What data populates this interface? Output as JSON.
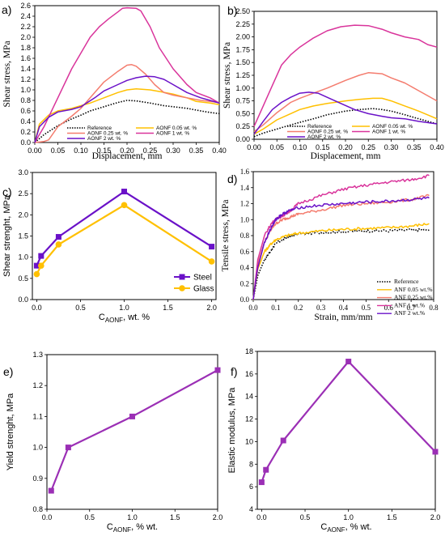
{
  "chart_data": [
    {
      "id": "a",
      "panel": "a)",
      "type": "line",
      "xlabel": "Displacement, mm",
      "ylabel": "Shear stress, MPa",
      "xlim": [
        0,
        0.4
      ],
      "ylim": [
        0,
        2.6
      ],
      "xticks": [
        "0.00",
        "0.05",
        "0.10",
        "0.15",
        "0.20",
        "0.25",
        "0.30",
        "0.35",
        "0.40"
      ],
      "yticks": [
        "0.0",
        "0.2",
        "0.4",
        "0.6",
        "0.8",
        "1.0",
        "1.2",
        "1.4",
        "1.6",
        "1.8",
        "2.0",
        "2.2",
        "2.4",
        "2.6"
      ],
      "legend": "bottom, two columns",
      "series": [
        {
          "name": "Reference",
          "color": "#000000",
          "dash": "dotted",
          "x": [
            0,
            0.02,
            0.05,
            0.08,
            0.1,
            0.12,
            0.15,
            0.18,
            0.2,
            0.22,
            0.25,
            0.28,
            0.3,
            0.33,
            0.36,
            0.38,
            0.4
          ],
          "y": [
            0,
            0.15,
            0.32,
            0.45,
            0.52,
            0.6,
            0.68,
            0.76,
            0.8,
            0.79,
            0.75,
            0.7,
            0.68,
            0.65,
            0.6,
            0.57,
            0.55
          ]
        },
        {
          "name": "AONF 0.05 wt. %",
          "color": "#FFC000",
          "dash": "solid",
          "x": [
            0,
            0.01,
            0.03,
            0.05,
            0.08,
            0.1,
            0.12,
            0.15,
            0.18,
            0.2,
            0.22,
            0.25,
            0.27,
            0.3,
            0.33,
            0.35,
            0.38,
            0.4
          ],
          "y": [
            0,
            0.35,
            0.52,
            0.6,
            0.65,
            0.7,
            0.75,
            0.85,
            0.95,
            1.0,
            1.02,
            1.0,
            0.97,
            0.92,
            0.85,
            0.78,
            0.75,
            0.72
          ]
        },
        {
          "name": "AONF 0.25 wt. %",
          "color": "#F47C6E",
          "dash": "solid",
          "x": [
            0,
            0.02,
            0.03,
            0.05,
            0.08,
            0.1,
            0.13,
            0.15,
            0.18,
            0.2,
            0.21,
            0.22,
            0.24,
            0.26,
            0.28,
            0.3,
            0.33,
            0.36,
            0.38,
            0.4
          ],
          "y": [
            0,
            0.02,
            0.05,
            0.3,
            0.5,
            0.65,
            0.95,
            1.15,
            1.35,
            1.47,
            1.48,
            1.45,
            1.3,
            1.1,
            0.95,
            0.9,
            0.85,
            0.8,
            0.78,
            0.76
          ]
        },
        {
          "name": "AONF 1 wt. %",
          "color": "#D9349B",
          "dash": "solid",
          "x": [
            0,
            0.02,
            0.05,
            0.08,
            0.1,
            0.12,
            0.14,
            0.16,
            0.18,
            0.19,
            0.2,
            0.22,
            0.23,
            0.25,
            0.27,
            0.3,
            0.33,
            0.35,
            0.38,
            0.4
          ],
          "y": [
            0,
            0.3,
            0.85,
            1.4,
            1.7,
            2.0,
            2.2,
            2.35,
            2.48,
            2.55,
            2.56,
            2.55,
            2.5,
            2.2,
            1.8,
            1.4,
            1.1,
            0.95,
            0.85,
            0.75
          ]
        },
        {
          "name": "AONF 2 wt. %",
          "color": "#6A11C8",
          "dash": "solid",
          "x": [
            0,
            0.01,
            0.03,
            0.05,
            0.08,
            0.1,
            0.13,
            0.15,
            0.18,
            0.2,
            0.22,
            0.24,
            0.26,
            0.28,
            0.3,
            0.33,
            0.36,
            0.38,
            0.4
          ],
          "y": [
            0,
            0.3,
            0.48,
            0.58,
            0.63,
            0.68,
            0.85,
            0.98,
            1.1,
            1.18,
            1.23,
            1.26,
            1.25,
            1.2,
            1.1,
            0.95,
            0.85,
            0.8,
            0.75
          ]
        }
      ]
    },
    {
      "id": "b",
      "panel": "b)",
      "type": "line",
      "xlabel": "Displacement, mm",
      "ylabel": "Shear stress, MPa",
      "xlim": [
        0,
        0.4
      ],
      "ylim": [
        0,
        2.5
      ],
      "xticks": [
        "0.00",
        "0.05",
        "0.10",
        "0.15",
        "0.20",
        "0.25",
        "0.30",
        "0.35",
        "0.40"
      ],
      "yticks": [
        "0.00",
        "0.25",
        "0.50",
        "0.75",
        "1.00",
        "1.25",
        "1.50",
        "1.75",
        "2.00",
        "2.25",
        "2.50"
      ],
      "legend": "bottom, two columns",
      "series": [
        {
          "name": "Reference",
          "color": "#000000",
          "dash": "dotted",
          "x": [
            0,
            0.02,
            0.05,
            0.08,
            0.1,
            0.13,
            0.16,
            0.2,
            0.23,
            0.26,
            0.28,
            0.3,
            0.33,
            0.36,
            0.4
          ],
          "y": [
            0.05,
            0.12,
            0.2,
            0.28,
            0.33,
            0.4,
            0.48,
            0.55,
            0.58,
            0.6,
            0.58,
            0.55,
            0.48,
            0.4,
            0.3
          ]
        },
        {
          "name": "AONF 0.05 wt. %",
          "color": "#FFC000",
          "dash": "solid",
          "x": [
            0,
            0.02,
            0.05,
            0.08,
            0.1,
            0.13,
            0.16,
            0.2,
            0.23,
            0.26,
            0.28,
            0.3,
            0.33,
            0.36,
            0.4
          ],
          "y": [
            0.1,
            0.2,
            0.38,
            0.5,
            0.58,
            0.65,
            0.7,
            0.75,
            0.78,
            0.8,
            0.8,
            0.75,
            0.65,
            0.55,
            0.4
          ]
        },
        {
          "name": "AONF 0.25 wt. %",
          "color": "#F47C6E",
          "dash": "solid",
          "x": [
            0,
            0.02,
            0.05,
            0.08,
            0.1,
            0.13,
            0.16,
            0.2,
            0.23,
            0.25,
            0.28,
            0.3,
            0.33,
            0.36,
            0.4
          ],
          "y": [
            0.15,
            0.28,
            0.52,
            0.72,
            0.8,
            0.9,
            1.0,
            1.15,
            1.25,
            1.3,
            1.28,
            1.2,
            1.1,
            0.95,
            0.75
          ]
        },
        {
          "name": "AONF 1 wt. %",
          "color": "#D9349B",
          "dash": "solid",
          "x": [
            0,
            0.02,
            0.04,
            0.06,
            0.08,
            0.1,
            0.13,
            0.16,
            0.19,
            0.22,
            0.25,
            0.28,
            0.3,
            0.33,
            0.36,
            0.38,
            0.4
          ],
          "y": [
            0.25,
            0.65,
            1.05,
            1.45,
            1.65,
            1.8,
            1.98,
            2.12,
            2.2,
            2.23,
            2.22,
            2.15,
            2.08,
            2.0,
            1.95,
            1.85,
            1.8
          ]
        },
        {
          "name": "AONF 2 wt. %",
          "color": "#6A11C8",
          "dash": "solid",
          "x": [
            0,
            0.02,
            0.04,
            0.06,
            0.08,
            0.1,
            0.12,
            0.14,
            0.16,
            0.19,
            0.22,
            0.25,
            0.28,
            0.3,
            0.33,
            0.36,
            0.4
          ],
          "y": [
            0.1,
            0.35,
            0.58,
            0.72,
            0.82,
            0.9,
            0.92,
            0.9,
            0.82,
            0.7,
            0.58,
            0.5,
            0.45,
            0.42,
            0.4,
            0.35,
            0.3
          ]
        }
      ]
    },
    {
      "id": "c",
      "panel": "c)",
      "type": "line",
      "xlabel_main": "C",
      "xlabel_sub": "AONF",
      "xlabel_tail": ", wt. %",
      "ylabel": "Shear strenght, MPa",
      "xlim": [
        -0.05,
        2.05
      ],
      "ylim": [
        0.0,
        3.0
      ],
      "xticks": [
        "0.0",
        "0.5",
        "1.0",
        "1.5",
        "2.0"
      ],
      "yticks": [
        "0.0",
        "0.5",
        "1.0",
        "1.5",
        "2.0",
        "2.5",
        "3.0"
      ],
      "legend": "bottom-right",
      "series": [
        {
          "name": "Steel",
          "color": "#6A11C8",
          "marker": "square",
          "x": [
            0,
            0.05,
            0.25,
            1.0,
            2.0
          ],
          "y": [
            0.8,
            1.03,
            1.48,
            2.55,
            1.25
          ]
        },
        {
          "name": "Glass",
          "color": "#FFC000",
          "marker": "circle",
          "x": [
            0,
            0.05,
            0.25,
            1.0,
            2.0
          ],
          "y": [
            0.6,
            0.8,
            1.3,
            2.23,
            0.9
          ]
        }
      ]
    },
    {
      "id": "d",
      "panel": "d)",
      "type": "line",
      "xlabel": "Strain, mm/mm",
      "ylabel": "Tensile stress, MPa",
      "xlim": [
        0,
        0.8
      ],
      "ylim": [
        0,
        1.6
      ],
      "xticks": [
        "0.0",
        "0.1",
        "0.2",
        "0.3",
        "0.4",
        "0.5",
        "0.6",
        "0.7",
        "0.8"
      ],
      "yticks": [
        "0.0",
        "0.2",
        "0.4",
        "0.6",
        "0.8",
        "1.0",
        "1.2",
        "1.4",
        "1.6"
      ],
      "legend": "bottom",
      "series": [
        {
          "name": "Reference",
          "color": "#000000",
          "dash": "dotted",
          "x": [
            0,
            0.02,
            0.05,
            0.08,
            0.1,
            0.15,
            0.2,
            0.3,
            0.4,
            0.5,
            0.6,
            0.7,
            0.78
          ],
          "y": [
            0,
            0.3,
            0.5,
            0.62,
            0.7,
            0.78,
            0.82,
            0.84,
            0.85,
            0.86,
            0.86,
            0.87,
            0.87
          ]
        },
        {
          "name": "ANF 0.05 wt.%",
          "color": "#FFC000",
          "dash": "solid",
          "x": [
            0,
            0.02,
            0.05,
            0.08,
            0.1,
            0.15,
            0.2,
            0.3,
            0.4,
            0.5,
            0.6,
            0.7,
            0.78
          ],
          "y": [
            0,
            0.38,
            0.6,
            0.7,
            0.75,
            0.8,
            0.83,
            0.86,
            0.88,
            0.89,
            0.9,
            0.92,
            0.95
          ]
        },
        {
          "name": "ANF 0.25 wt.%",
          "color": "#F47C6E",
          "dash": "solid",
          "x": [
            0,
            0.02,
            0.05,
            0.08,
            0.1,
            0.13,
            0.16,
            0.2,
            0.3,
            0.4,
            0.5,
            0.6,
            0.7,
            0.78
          ],
          "y": [
            0,
            0.45,
            0.72,
            0.88,
            0.95,
            1.0,
            1.03,
            1.07,
            1.12,
            1.18,
            1.2,
            1.22,
            1.25,
            1.3
          ]
        },
        {
          "name": "ANF 1 wt.%",
          "color": "#D9349B",
          "dash": "solid",
          "x": [
            0,
            0.02,
            0.05,
            0.08,
            0.1,
            0.13,
            0.16,
            0.2,
            0.3,
            0.4,
            0.5,
            0.6,
            0.7,
            0.78
          ],
          "y": [
            0,
            0.5,
            0.8,
            0.95,
            1.0,
            1.05,
            1.1,
            1.2,
            1.3,
            1.38,
            1.43,
            1.47,
            1.5,
            1.55
          ]
        },
        {
          "name": "ANF 2 wt.%",
          "color": "#6A11C8",
          "dash": "solid",
          "x": [
            0,
            0.02,
            0.05,
            0.08,
            0.1,
            0.12,
            0.15,
            0.2,
            0.3,
            0.4,
            0.5,
            0.6,
            0.7,
            0.78
          ],
          "y": [
            0,
            0.4,
            0.72,
            0.9,
            1.0,
            1.05,
            1.1,
            1.15,
            1.18,
            1.2,
            1.22,
            1.23,
            1.25,
            1.27
          ]
        }
      ]
    },
    {
      "id": "e",
      "panel": "e)",
      "type": "line",
      "xlabel_main": "C",
      "xlabel_sub": "AONF",
      "xlabel_tail": ", % wt.",
      "ylabel": "Yield strenght, MPa",
      "xlim": [
        0,
        2.0
      ],
      "ylim": [
        0.8,
        1.3
      ],
      "xticks": [
        "0.0",
        "0.5",
        "1.0",
        "1.5",
        "2.0"
      ],
      "yticks": [
        "0.8",
        "0.9",
        "1.0",
        "1.1",
        "1.2",
        "1.3"
      ],
      "series": [
        {
          "name": "",
          "color": "#9B2FB5",
          "marker": "square",
          "x": [
            0.05,
            0.25,
            1.0,
            2.0
          ],
          "y": [
            0.86,
            1.0,
            1.1,
            1.25
          ]
        }
      ]
    },
    {
      "id": "f",
      "panel": "f)",
      "type": "line",
      "xlabel_main": "C",
      "xlabel_sub": "AONF",
      "xlabel_tail": ", % wt.",
      "ylabel": "Elastic modulus, MPa",
      "xlim": [
        -0.05,
        2.0
      ],
      "ylim": [
        4,
        18
      ],
      "xticks": [
        "0.0",
        "0.5",
        "1.0",
        "1.5",
        "2.0"
      ],
      "yticks": [
        "4",
        "6",
        "8",
        "10",
        "12",
        "14",
        "16",
        "18"
      ],
      "series": [
        {
          "name": "",
          "color": "#9B2FB5",
          "marker": "square",
          "x": [
            0,
            0.05,
            0.25,
            1.0,
            2.0
          ],
          "y": [
            6.4,
            7.5,
            10.1,
            17.1,
            9.1
          ]
        }
      ]
    }
  ]
}
